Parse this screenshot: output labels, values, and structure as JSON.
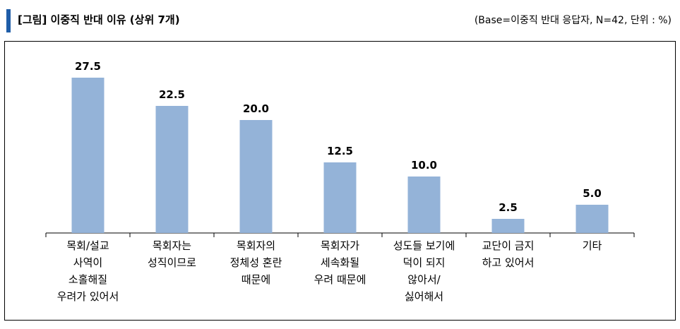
{
  "header": {
    "title": "[그림] 이중직 반대 이유 (상위 7개)",
    "base_note": "(Base=이중직 반대 응답자, N=42, 단위 : %)"
  },
  "colors": {
    "bar": "#94b3d8",
    "accent": "#1f5da8"
  },
  "chart_data": {
    "type": "bar",
    "categories": [
      [
        "목회/설교",
        "사역이",
        "소홀해질",
        "우려가 있어서"
      ],
      [
        "목회자는",
        "성직이므로"
      ],
      [
        "목회자의",
        "정체성 혼란",
        "때문에"
      ],
      [
        "목회자가",
        "세속화될",
        "우려 때문에"
      ],
      [
        "성도들 보기에",
        "덕이 되지",
        "않아서/",
        "싫어해서"
      ],
      [
        "교단이 금지",
        "하고 있어서"
      ],
      [
        "기타"
      ]
    ],
    "values": [
      27.5,
      22.5,
      20.0,
      12.5,
      10.0,
      2.5,
      5.0
    ],
    "value_labels": [
      "27.5",
      "22.5",
      "20.0",
      "12.5",
      "10.0",
      "2.5",
      "5.0"
    ],
    "ylim": [
      0,
      30
    ],
    "grid": false,
    "legend": "none"
  }
}
